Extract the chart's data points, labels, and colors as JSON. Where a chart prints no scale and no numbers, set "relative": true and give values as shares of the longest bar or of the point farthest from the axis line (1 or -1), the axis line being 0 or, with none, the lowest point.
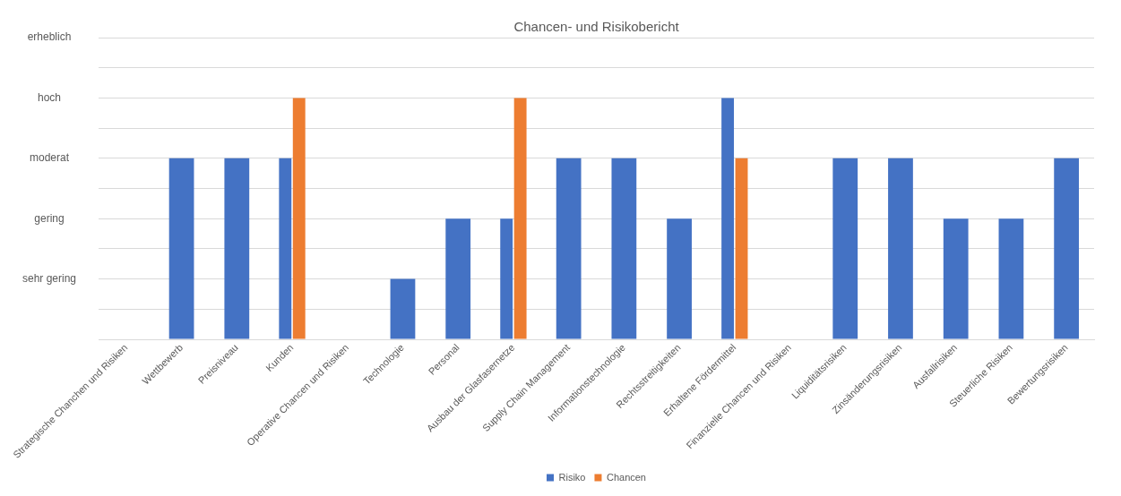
{
  "chart_data": {
    "type": "bar",
    "title": "Chancen- und Risikobericht",
    "categories": [
      "Strategische Chanchen und Risiken",
      "Wettbewerb",
      "Preisniveau",
      "Kunden",
      "Operative Chancen und Risiken",
      "Technologie",
      "Personal",
      "Ausbau der Glasfasernetze",
      "Supply Chain Management",
      "Informationstechnologie",
      "Rechtsstreitigkeiten",
      "Erhaltene Fördermittel",
      "Finanzielle Chancen und Risiken",
      "Liquiditätsrisiken",
      "Zinsänderungsrisiken",
      "Ausfallrisiken",
      "Steuerliche Risiken",
      "Bewertungsrisiken"
    ],
    "series": [
      {
        "name": "Risiko",
        "color": "#4472c4",
        "values": [
          null,
          0.75,
          0.75,
          0.75,
          null,
          0.25,
          0.5,
          0.5,
          0.75,
          0.75,
          0.5,
          1,
          null,
          0.75,
          0.75,
          0.5,
          0.5,
          0.75
        ]
      },
      {
        "name": "Chancen",
        "color": "#ed7d31",
        "values": [
          null,
          null,
          null,
          1,
          null,
          null,
          null,
          1,
          null,
          null,
          null,
          0.75,
          null,
          null,
          null,
          null,
          null,
          null
        ]
      }
    ],
    "relative": true,
    "annotations": [
      "sehr gering",
      "gering",
      "moderat",
      "hoch",
      "erheblich"
    ],
    "grid": "y",
    "legend": "bottom"
  }
}
